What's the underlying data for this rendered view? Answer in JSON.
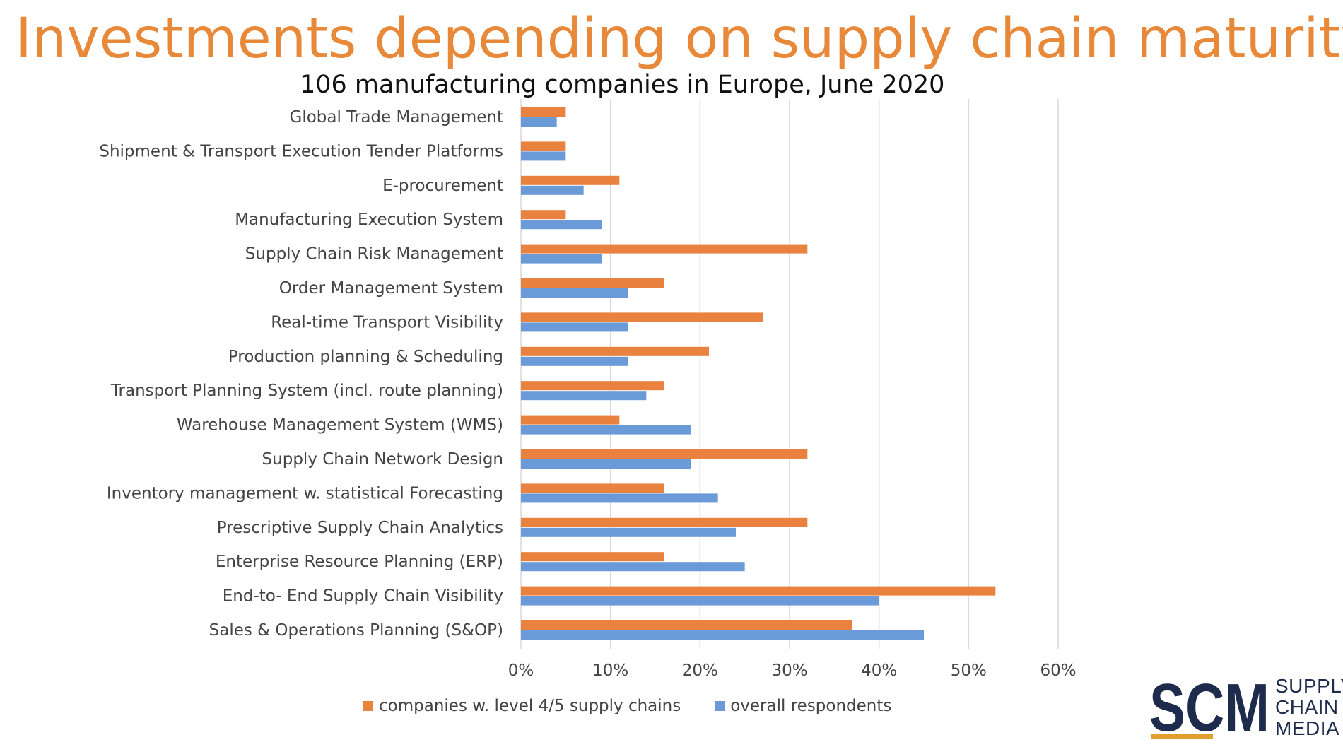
{
  "slide": {
    "title": "Investments depending on supply chain maturity"
  },
  "colors": {
    "title": "#E8893A",
    "series_level45": "#E8823E",
    "series_overall": "#6A9AD8",
    "grid": "#D9D9D9",
    "logo_navy": "#1E2B4C",
    "logo_gold": "#E0A030"
  },
  "chart_data": {
    "type": "bar",
    "orientation": "horizontal",
    "title": "106 manufacturing companies in Europe, June 2020",
    "categories": [
      "Global Trade Management",
      "Shipment & Transport Execution Tender Platforms",
      "E-procurement",
      "Manufacturing Execution System",
      "Supply Chain Risk Management",
      "Order Management System",
      "Real-time Transport Visibility",
      "Production planning & Scheduling",
      "Transport Planning System (incl. route planning)",
      "Warehouse Management System (WMS)",
      "Supply Chain Network Design",
      "Inventory management w. statistical Forecasting",
      "Prescriptive Supply Chain Analytics",
      "Enterprise Resource Planning (ERP)",
      "End-to- End Supply Chain Visibility",
      "Sales & Operations Planning (S&OP)"
    ],
    "series": [
      {
        "name": "companies w. level 4/5 supply chains",
        "color": "#E8823E",
        "values": [
          5,
          5,
          11,
          5,
          32,
          16,
          27,
          21,
          16,
          11,
          32,
          16,
          32,
          16,
          53,
          37
        ]
      },
      {
        "name": "overall respondents",
        "color": "#6A9AD8",
        "values": [
          4,
          5,
          7,
          9,
          9,
          12,
          12,
          12,
          14,
          19,
          19,
          22,
          24,
          25,
          40,
          45
        ]
      }
    ],
    "xlim": [
      0,
      60
    ],
    "xticks": [
      0,
      10,
      20,
      30,
      40,
      50,
      60
    ],
    "xtick_labels": [
      "0%",
      "10%",
      "20%",
      "30%",
      "40%",
      "50%",
      "60%"
    ],
    "xlabel": "",
    "ylabel": "",
    "grid": "vertical",
    "legend": "bottom"
  },
  "logo": {
    "mark": "SCM",
    "words": [
      "SUPPLY",
      "CHAIN",
      "MEDIA"
    ]
  }
}
